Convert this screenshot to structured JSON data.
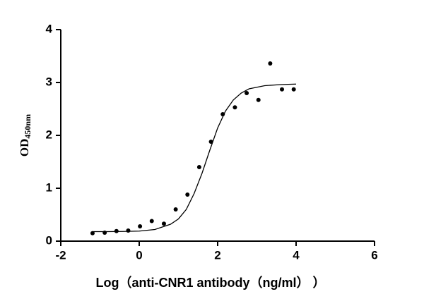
{
  "chart_data": {
    "type": "scatter",
    "y_label": "OD",
    "y_label_subscript": "450nm",
    "x_label": "Log（anti-CNR1 antibody（ng/ml）  ）",
    "x": [
      -1.19,
      -0.88,
      -0.58,
      -0.28,
      0.02,
      0.32,
      0.63,
      0.93,
      1.23,
      1.53,
      1.83,
      2.13,
      2.44,
      2.74,
      3.04,
      3.34,
      3.64,
      3.94
    ],
    "values": [
      0.15,
      0.16,
      0.19,
      0.2,
      0.28,
      0.38,
      0.33,
      0.6,
      0.88,
      1.4,
      1.88,
      2.4,
      2.53,
      2.8,
      2.67,
      3.36,
      2.87,
      2.87
    ],
    "color": "#000000",
    "curve": {
      "x": [
        -1.2,
        -0.8,
        -0.4,
        0,
        0.4,
        0.8,
        1.0,
        1.2,
        1.4,
        1.6,
        1.8,
        2.0,
        2.2,
        2.4,
        2.6,
        2.8,
        3.2,
        3.6,
        4.0
      ],
      "values": [
        0.18,
        0.18,
        0.183,
        0.19,
        0.22,
        0.32,
        0.42,
        0.6,
        0.9,
        1.28,
        1.72,
        2.14,
        2.46,
        2.67,
        2.8,
        2.88,
        2.94,
        2.96,
        2.97
      ]
    },
    "xlim": [
      -2,
      6
    ],
    "xticks": [
      -2,
      0,
      2,
      4,
      6
    ],
    "ylim": [
      0,
      4
    ],
    "yticks": [
      0,
      1,
      2,
      3,
      4
    ],
    "grid": false
  }
}
